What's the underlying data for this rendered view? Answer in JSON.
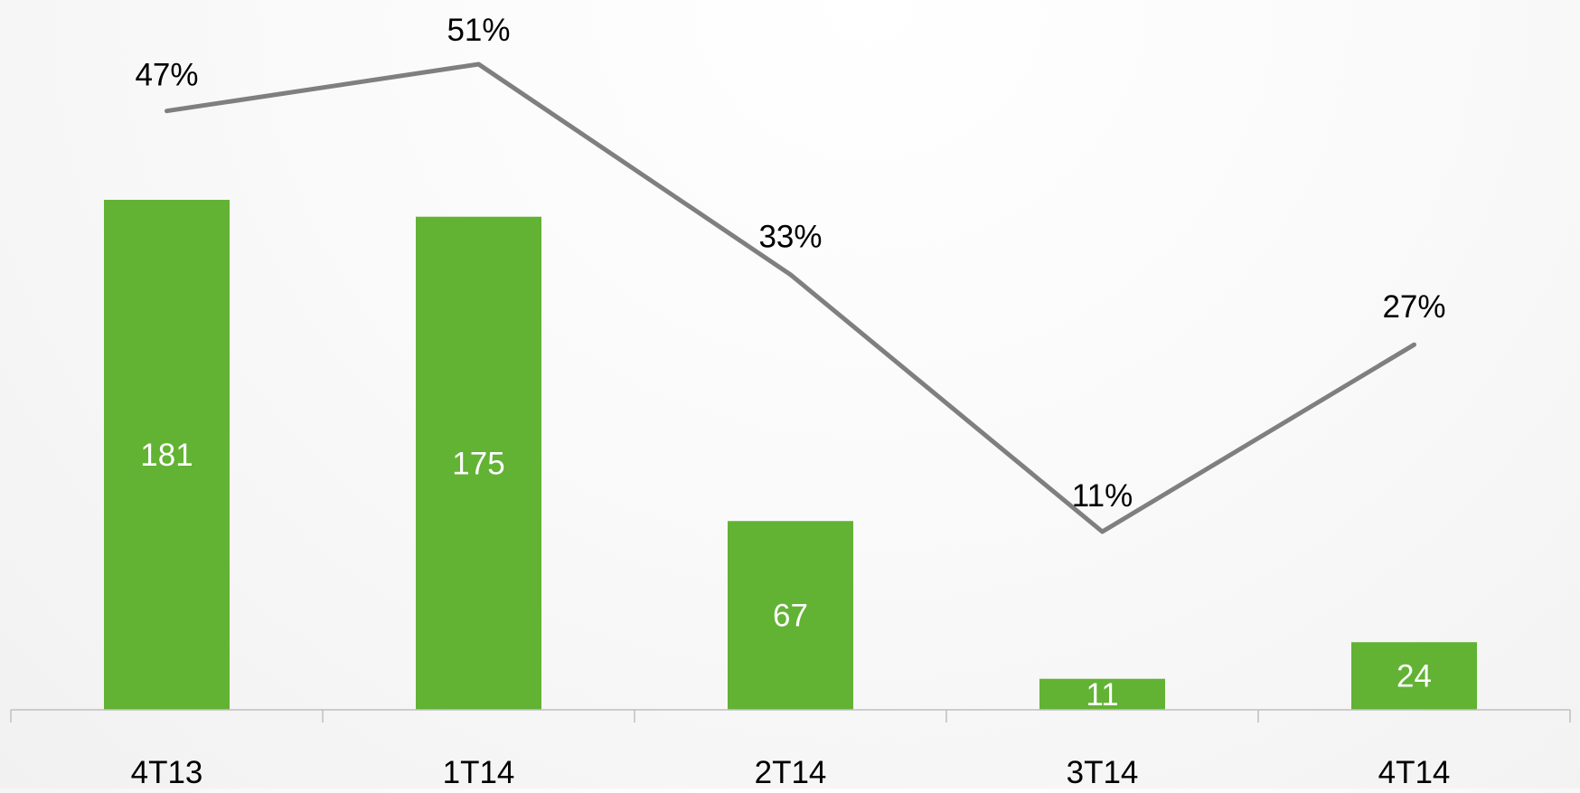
{
  "chart_data": {
    "type": "bar",
    "categories": [
      "4T13",
      "1T14",
      "2T14",
      "3T14",
      "4T14"
    ],
    "series": [
      {
        "type": "bar",
        "values": [
          181,
          175,
          67,
          11,
          24
        ],
        "value_labels": [
          "181",
          "175",
          "67",
          "11",
          "24"
        ],
        "color": "#62b234"
      },
      {
        "type": "line",
        "values": [
          47,
          51,
          33,
          11,
          27
        ],
        "unit": "%",
        "value_labels": [
          "47%",
          "51%",
          "33%",
          "11%",
          "27%"
        ],
        "color": "#7f7f7f"
      }
    ],
    "title": "",
    "xlabel": "",
    "ylabel": "",
    "bar_ylim": [
      0,
      181
    ],
    "line_ylim": [
      11,
      51
    ],
    "grid": false,
    "legend": "none"
  }
}
